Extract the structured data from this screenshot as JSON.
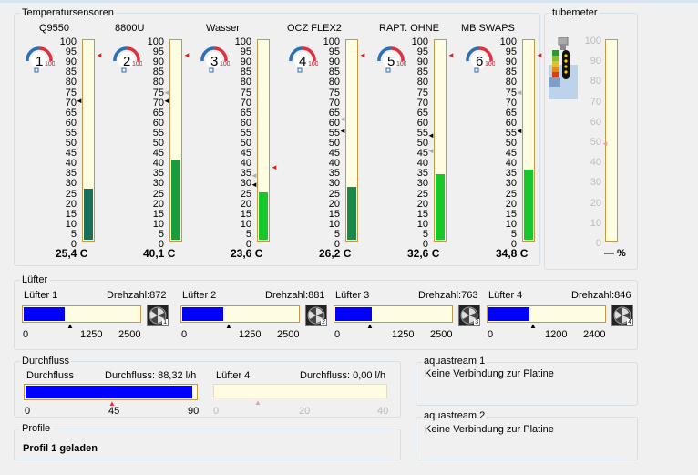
{
  "temperature_group": {
    "title": "Temperatursensoren",
    "scale_ticks": [
      "100",
      "95",
      "90",
      "85",
      "80",
      "75",
      "70",
      "65",
      "60",
      "55",
      "50",
      "45",
      "40",
      "35",
      "30",
      "25",
      "20",
      "15",
      "10",
      "5",
      "0"
    ],
    "sensors": [
      {
        "name": "Q9550",
        "index": "1",
        "badge_max": "100",
        "value": "25,4 C",
        "level": 25.4,
        "fill_color": "#19705a"
      },
      {
        "name": "8800U",
        "index": "2",
        "badge_max": "100",
        "value": "40,1 C",
        "level": 40.1,
        "fill_color": "#1c9a3e"
      },
      {
        "name": "Wasser",
        "index": "3",
        "badge_max": "100",
        "value": "23,6 C",
        "level": 23.6,
        "fill_color": "#18c72b"
      },
      {
        "name": "OCZ FLEX2",
        "index": "4",
        "badge_max": "100",
        "value": "26,2 C",
        "level": 26.2,
        "fill_color": "#1a8a4c"
      },
      {
        "name": "RAPT. OHNE",
        "index": "5",
        "badge_max": "100",
        "value": "32,6 C",
        "level": 32.6,
        "fill_color": "#18c72b"
      },
      {
        "name": "MB SWAPS",
        "index": "6",
        "badge_max": "100",
        "value": "34,8 C",
        "level": 34.8,
        "fill_color": "#18c72b"
      }
    ]
  },
  "tubemeter": {
    "title": "tubemeter",
    "scale_ticks": [
      "100",
      "90",
      "80",
      "70",
      "60",
      "50",
      "40",
      "30",
      "20",
      "10",
      "0"
    ],
    "value": "— %"
  },
  "fans_group": {
    "title": "Lüfter",
    "fans": [
      {
        "name": "Lüfter 1",
        "speed": "Drehzahl:872",
        "level": 0.35,
        "ticks": [
          "0",
          "1250",
          "2500"
        ],
        "icon_num": "1"
      },
      {
        "name": "Lüfter 2",
        "speed": "Drehzahl:881",
        "level": 0.35,
        "ticks": [
          "0",
          "1250",
          "2500"
        ],
        "icon_num": "2"
      },
      {
        "name": "Lüfter 3",
        "speed": "Drehzahl:763",
        "level": 0.31,
        "ticks": [
          "0",
          "1250",
          "2500"
        ],
        "icon_num": "3"
      },
      {
        "name": "Lüfter 4",
        "speed": "Drehzahl:846",
        "level": 0.35,
        "ticks": [
          "0",
          "1200",
          "2400"
        ],
        "icon_num": "4"
      }
    ]
  },
  "flow_group": {
    "title": "Durchfluss",
    "left": {
      "name": "Durchfluss",
      "value": "Durchfluss: 88,32 l/h",
      "level": 0.98,
      "ticks": [
        "0",
        "45",
        "90"
      ]
    },
    "right": {
      "name": "Lüfter 4",
      "value": "Durchfluss: 0,00 l/h",
      "level": 0.0,
      "ticks": [
        "0",
        "20",
        "40"
      ]
    }
  },
  "aquastream1": {
    "title": "aquastream 1",
    "status": "Keine Verbindung zur Platine"
  },
  "aquastream2": {
    "title": "aquastream 2",
    "status": "Keine Verbindung zur Platine"
  },
  "profile_group": {
    "title": "Profile",
    "status": "Profil 1 geladen"
  }
}
